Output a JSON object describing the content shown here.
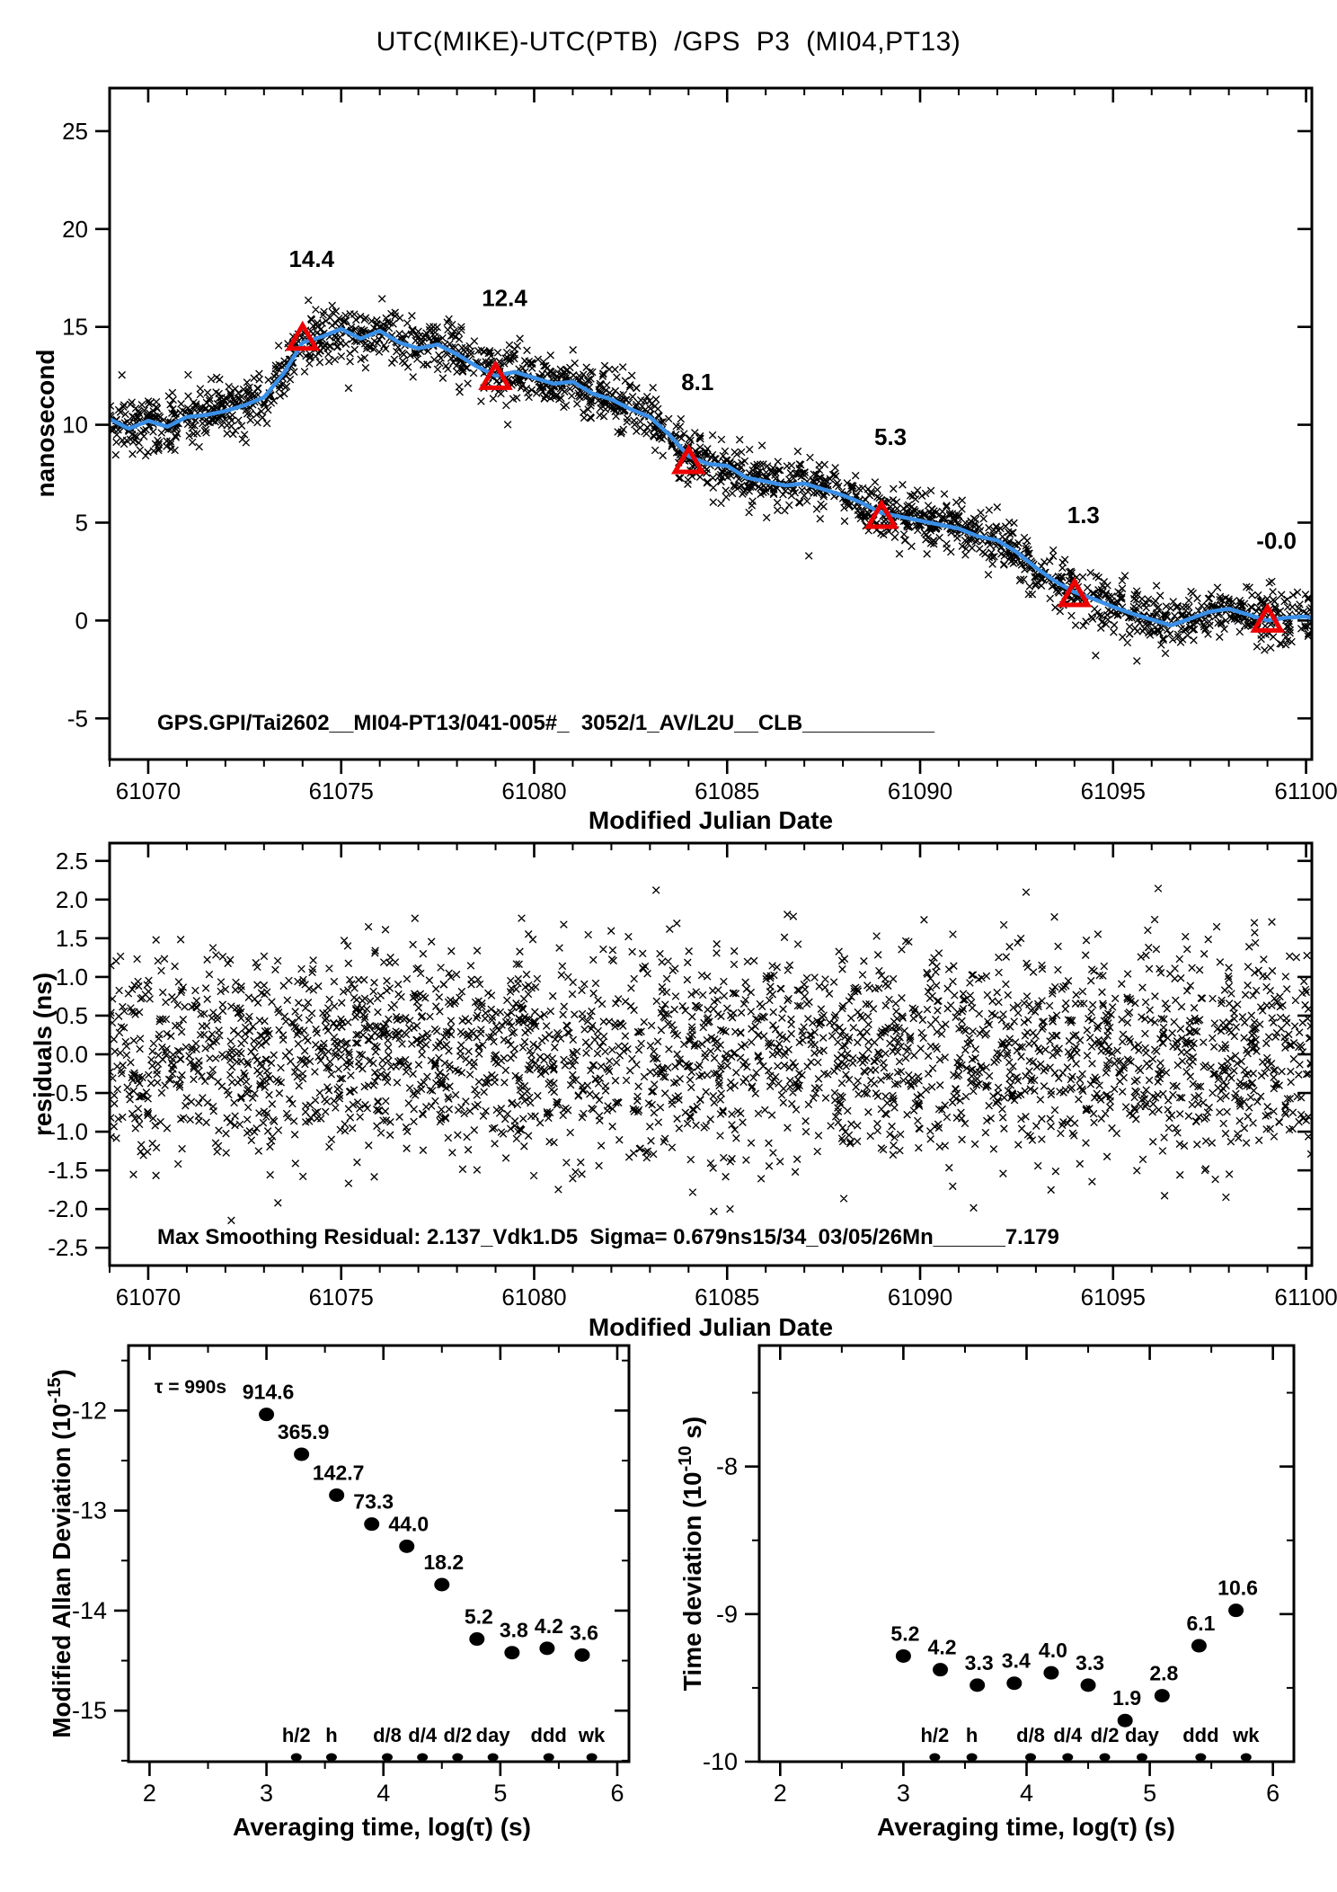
{
  "title": "UTC(MIKE)-UTC(PTB)  /GPS  P3  (MI04,PT13)",
  "colors": {
    "red": "#ee0000",
    "blue": "#3a8fe6",
    "black": "#000000"
  },
  "chart_data": [
    {
      "id": "top",
      "type": "scatter",
      "title": "",
      "ylabel": "nanosecond",
      "xlabel": "Modified Julian Date",
      "annotation": "GPS.GPI/Tai2602__MI04-PT13/041-005#_  3052/1_AV/L2U__CLB___________",
      "xlim": [
        61069.0,
        61100.15
      ],
      "ylim": [
        -7.1,
        27.2
      ],
      "xticks": [
        61070,
        61075,
        61080,
        61085,
        61090,
        61095,
        61100
      ],
      "xminor_step": 1,
      "yticks": [
        -5,
        0,
        5,
        10,
        15,
        20,
        25
      ],
      "marker": "x",
      "noise_sigma": 0.68,
      "n_points": 2100,
      "seed": 1234,
      "trend": {
        "x0": 61069.0,
        "dx": 0.5,
        "y": [
          10.3,
          9.8,
          10.2,
          9.9,
          10.4,
          10.5,
          10.7,
          11.0,
          11.4,
          12.6,
          14.2,
          14.5,
          14.9,
          14.4,
          14.8,
          14.2,
          13.9,
          14.1,
          13.6,
          13.0,
          12.5,
          12.7,
          12.4,
          12.1,
          12.2,
          11.6,
          11.3,
          10.8,
          10.4,
          9.5,
          8.4,
          8.0,
          7.9,
          7.3,
          7.1,
          6.9,
          7.0,
          6.7,
          6.4,
          6.0,
          5.5,
          5.3,
          5.1,
          4.9,
          4.7,
          4.3,
          4.1,
          3.5,
          2.7,
          2.0,
          1.45,
          1.1,
          0.7,
          0.35,
          0.05,
          -0.25,
          0.1,
          0.45,
          0.6,
          0.3,
          0.0,
          0.15,
          0.2,
          -0.15
        ]
      },
      "calibration": {
        "mjd": [
          61074,
          61079,
          61084,
          61089,
          61094,
          61099
        ],
        "value": [
          14.4,
          12.4,
          8.1,
          5.3,
          1.3,
          0.0
        ],
        "label": [
          "14.4",
          "12.4",
          "8.1",
          "5.3",
          "1.3",
          "-0.0"
        ]
      }
    },
    {
      "id": "residuals",
      "type": "scatter",
      "ylabel": "residuals (ns)",
      "xlabel": "Modified Julian Date",
      "annotation": "Max Smoothing Residual: 2.137_Vdk1.D5  Sigma= 0.679ns15/34_03/05/26Mn______7.179",
      "xlim": [
        61069.0,
        61100.15
      ],
      "ylim": [
        -2.73,
        2.73
      ],
      "xticks": [
        61070,
        61075,
        61080,
        61085,
        61090,
        61095,
        61100
      ],
      "xminor_step": 1,
      "yticks": [
        -2.5,
        -2.0,
        -1.5,
        -1.0,
        -0.5,
        0.0,
        0.5,
        1.0,
        1.5,
        2.0,
        2.5
      ],
      "ytick_decimals": 1,
      "marker": "x",
      "sigma": 0.679,
      "clip": 2.2,
      "n_points": 2700,
      "seed": 99
    },
    {
      "id": "mdev",
      "type": "scatter",
      "ylabel_main": "Modified Allan Deviation (10",
      "ylabel_sup": "-15",
      "ylabel_end": ")",
      "xlabel": "Averaging time, log(τ) (s)",
      "tau_annotation": "τ = 990s",
      "xlim": [
        1.82,
        6.1
      ],
      "ylim": [
        -15.51,
        -11.35
      ],
      "xticks": [
        2,
        3,
        4,
        5,
        6
      ],
      "xminor_step": 0.5,
      "yticks": [
        -12,
        -13,
        -14,
        -15
      ],
      "yminor_step": 0.5,
      "unit_exponent": -15,
      "log_tau": [
        3.0,
        3.3,
        3.6,
        3.9,
        4.2,
        4.5,
        4.8,
        5.1,
        5.4,
        5.7
      ],
      "values": [
        914.6,
        365.9,
        142.7,
        73.3,
        44.0,
        18.2,
        5.2,
        3.8,
        4.2,
        3.6
      ],
      "labels": [
        "914.6",
        "365.9",
        "142.7",
        "73.3",
        "44.0",
        "18.2",
        "5.2",
        "3.8",
        "4.2",
        "3.6"
      ],
      "ref_marks": {
        "log_tau": [
          3.255,
          3.556,
          4.033,
          4.334,
          4.635,
          4.937,
          5.414,
          5.782
        ],
        "labels": [
          "h/2",
          "h",
          "d/8",
          "d/4",
          "d/2",
          "day",
          "ddd",
          "wk"
        ]
      }
    },
    {
      "id": "tdev",
      "type": "scatter",
      "ylabel_main": "Time deviation (10",
      "ylabel_sup": "-10",
      "ylabel_end": " s)",
      "xlabel": "Averaging time, log(τ) (s)",
      "xlim": [
        1.83,
        6.17
      ],
      "ylim": [
        -10.0,
        -7.18
      ],
      "xticks": [
        2,
        3,
        4,
        5,
        6
      ],
      "xminor_step": 0.5,
      "yticks": [
        -8,
        -9,
        -10
      ],
      "yminor_step": 0.5,
      "unit_exponent": -10,
      "log_tau": [
        3.0,
        3.3,
        3.6,
        3.9,
        4.2,
        4.5,
        4.8,
        5.1,
        5.4,
        5.7
      ],
      "values": [
        5.2,
        4.2,
        3.3,
        3.4,
        4.0,
        3.3,
        1.9,
        2.8,
        6.1,
        10.6
      ],
      "labels": [
        "5.2",
        "4.2",
        "3.3",
        "3.4",
        "4.0",
        "3.3",
        "1.9",
        "2.8",
        "6.1",
        "10.6"
      ],
      "ref_marks": {
        "log_tau": [
          3.255,
          3.556,
          4.033,
          4.334,
          4.635,
          4.937,
          5.414,
          5.782
        ],
        "labels": [
          "h/2",
          "h",
          "d/8",
          "d/4",
          "d/2",
          "day",
          "ddd",
          "wk"
        ]
      }
    }
  ]
}
